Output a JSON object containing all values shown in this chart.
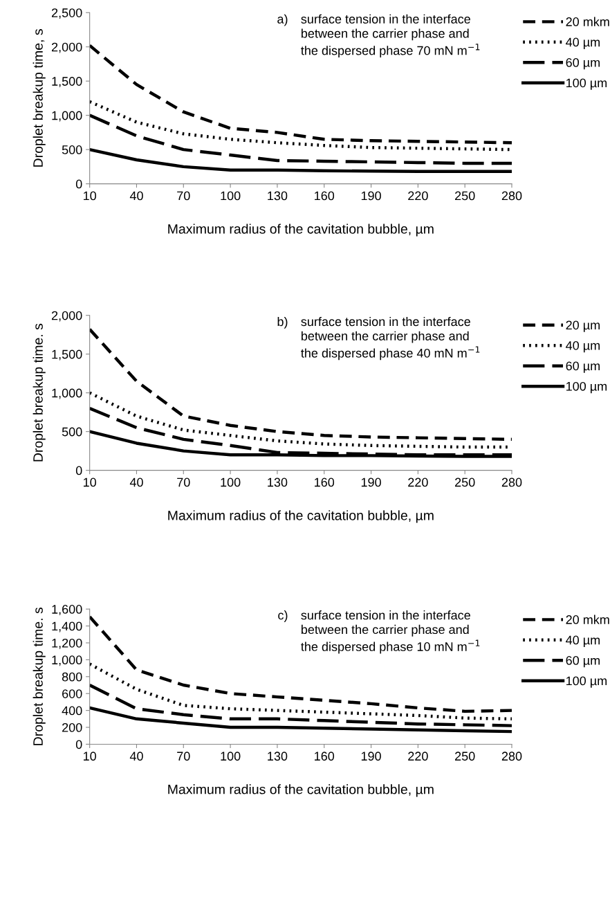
{
  "chart_data": [
    {
      "type": "line",
      "ylabel": "Droplet breakup time, s",
      "xlabel": "Maximum radius of the cavitation bubble, µm",
      "annotations": [
        "a)",
        "surface tension in the interface\nbetween the carrier phase and\nthe dispersed phase 70 mN m$^{−1}$"
      ],
      "x": [
        10,
        40,
        70,
        100,
        130,
        160,
        190,
        220,
        250,
        280
      ],
      "xlim": [
        10,
        280
      ],
      "xticks": [
        10,
        40,
        70,
        100,
        130,
        160,
        190,
        220,
        250,
        280
      ],
      "ylim": [
        0,
        2500
      ],
      "yticks": [
        {
          "value": 0,
          "label": "0"
        },
        {
          "value": 500,
          "label": "500"
        },
        {
          "value": 1000,
          "label": "1,000"
        },
        {
          "value": 1500,
          "label": "1,500"
        },
        {
          "value": 2000,
          "label": "2,000"
        },
        {
          "value": 2500,
          "label": "2,500"
        }
      ],
      "grid": false,
      "legend": "top right",
      "marker": "none",
      "series": [
        {
          "name": "20 mkm",
          "color": "#000000",
          "line_style": "dashed",
          "values": [
            2020,
            1450,
            1050,
            810,
            750,
            650,
            630,
            620,
            610,
            600
          ]
        },
        {
          "name": "40 µm",
          "color": "#000000",
          "line_style": "dotted",
          "values": [
            1200,
            900,
            730,
            650,
            600,
            560,
            530,
            520,
            510,
            500
          ]
        },
        {
          "name": "60 µm",
          "color": "#000000",
          "line_style": "dashdot",
          "values": [
            1000,
            700,
            500,
            420,
            340,
            330,
            320,
            310,
            300,
            300
          ]
        },
        {
          "name": "100 µm",
          "color": "#000000",
          "line_style": "solid",
          "values": [
            500,
            350,
            250,
            200,
            200,
            190,
            185,
            180,
            180,
            180
          ]
        }
      ]
    },
    {
      "type": "line",
      "ylabel": "Droplet breakup time. s",
      "xlabel": "Maximum radius of the cavitation bubble, µm",
      "annotations": [
        "b)",
        "surface tension in the interface\nbetween the carrier phase and\nthe dispersed phase 40 mN m$^{−1}$"
      ],
      "x": [
        10,
        40,
        70,
        100,
        130,
        160,
        190,
        220,
        250,
        280
      ],
      "xlim": [
        10,
        280
      ],
      "xticks": [
        10,
        40,
        70,
        100,
        130,
        160,
        190,
        220,
        250,
        280
      ],
      "ylim": [
        0,
        2000
      ],
      "yticks": [
        {
          "value": 0,
          "label": "0"
        },
        {
          "value": 500,
          "label": "500"
        },
        {
          "value": 1000,
          "label": "1,000"
        },
        {
          "value": 1500,
          "label": "1,500"
        },
        {
          "value": 2000,
          "label": "2,000"
        }
      ],
      "grid": false,
      "legend": "top right",
      "marker": "none",
      "series": [
        {
          "name": "20 µm",
          "color": "#000000",
          "line_style": "dashed",
          "values": [
            1820,
            1150,
            700,
            580,
            500,
            450,
            430,
            420,
            410,
            400
          ]
        },
        {
          "name": "40 µm",
          "color": "#000000",
          "line_style": "dotted",
          "values": [
            1000,
            700,
            520,
            450,
            380,
            340,
            320,
            310,
            300,
            300
          ]
        },
        {
          "name": "60 µm",
          "color": "#000000",
          "line_style": "dashdot",
          "values": [
            800,
            550,
            400,
            320,
            230,
            220,
            210,
            200,
            200,
            200
          ]
        },
        {
          "name": "100 µm",
          "color": "#000000",
          "line_style": "solid",
          "values": [
            500,
            350,
            250,
            200,
            200,
            190,
            190,
            185,
            180,
            180
          ]
        }
      ]
    },
    {
      "type": "line",
      "ylabel": "Droplet breakup time. s",
      "xlabel": "Maximum radius of the cavitation bubble, µm",
      "annotations": [
        "c)",
        "surface tension in the interface\nbetween the carrier phase and\nthe dispersed phase 10 mN m$^{−1}$"
      ],
      "x": [
        10,
        40,
        70,
        100,
        130,
        160,
        190,
        220,
        250,
        280
      ],
      "xlim": [
        10,
        280
      ],
      "xticks": [
        10,
        40,
        70,
        100,
        130,
        160,
        190,
        220,
        250,
        280
      ],
      "ylim": [
        0,
        1600
      ],
      "yticks": [
        {
          "value": 0,
          "label": "0"
        },
        {
          "value": 200,
          "label": "200"
        },
        {
          "value": 400,
          "label": "400"
        },
        {
          "value": 600,
          "label": "600"
        },
        {
          "value": 800,
          "label": "800"
        },
        {
          "value": 1000,
          "label": "1,000"
        },
        {
          "value": 1200,
          "label": "1,200"
        },
        {
          "value": 1400,
          "label": "1,400"
        },
        {
          "value": 1600,
          "label": "1,600"
        }
      ],
      "grid": false,
      "legend": "top right",
      "marker": "none",
      "series": [
        {
          "name": "20 mkm",
          "color": "#000000",
          "line_style": "dashed",
          "values": [
            1510,
            880,
            700,
            600,
            560,
            520,
            480,
            430,
            390,
            400
          ]
        },
        {
          "name": "40 µm",
          "color": "#000000",
          "line_style": "dotted",
          "values": [
            950,
            650,
            460,
            420,
            400,
            380,
            360,
            340,
            310,
            300
          ]
        },
        {
          "name": "60 µm",
          "color": "#000000",
          "line_style": "dashdot",
          "values": [
            700,
            420,
            350,
            300,
            300,
            280,
            260,
            240,
            230,
            220
          ]
        },
        {
          "name": "100 µm",
          "color": "#000000",
          "line_style": "solid",
          "values": [
            430,
            300,
            250,
            200,
            200,
            190,
            180,
            170,
            160,
            150
          ]
        }
      ]
    }
  ]
}
